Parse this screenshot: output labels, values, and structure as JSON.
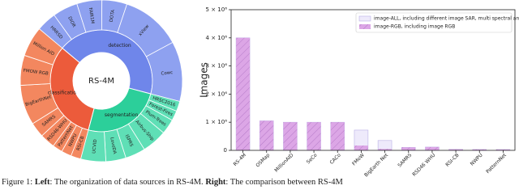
{
  "chart_data": [
    {
      "type": "sunburst",
      "center_label": "RS-4M",
      "groups": [
        {
          "name": "detection",
          "color": "#6f86ea",
          "child_color": "#8ea1f0",
          "value": 43,
          "children": [
            {
              "name": "HRRSD",
              "value": 4
            },
            {
              "name": "DIOR",
              "value": 5
            },
            {
              "name": "FAIR1M",
              "value": 5
            },
            {
              "name": "DOTA",
              "value": 5
            },
            {
              "name": "xView",
              "value": 12
            },
            {
              "name": "Cowc",
              "value": 12
            }
          ]
        },
        {
          "name": "segmentation",
          "color": "#2ccf9a",
          "child_color": "#5fdfb6",
          "value": 25,
          "children": [
            {
              "name": "HRSC2016",
              "value": 2
            },
            {
              "name": "Forest-Fires",
              "value": 2
            },
            {
              "name": "Plum-Trees",
              "value": 3
            },
            {
              "name": "Airbus-Ship",
              "value": 5
            },
            {
              "name": "ISPRS",
              "value": 4
            },
            {
              "name": "LoveDA",
              "value": 4
            },
            {
              "name": "UCVID",
              "value": 5
            }
          ]
        },
        {
          "name": "classification",
          "color": "#ec5b3b",
          "child_color": "#f3875f",
          "value": 32,
          "children": [
            {
              "name": "RSI-CB",
              "value": 2
            },
            {
              "name": "NWPU",
              "value": 2
            },
            {
              "name": "PatternNet",
              "value": 2
            },
            {
              "name": "RSD46-WHU",
              "value": 3
            },
            {
              "name": "SAMRS",
              "value": 3
            },
            {
              "name": "BigEarthNet",
              "value": 8
            },
            {
              "name": "FMOW RGB",
              "value": 6
            },
            {
              "name": "Million AID",
              "value": 6
            }
          ]
        }
      ]
    },
    {
      "type": "bar",
      "y_label": "Images",
      "categories": [
        "RS-4M",
        "OSMap",
        "MillionAID",
        "SeCo",
        "CACo",
        "FMoW",
        "BigEarth Net",
        "SAMRS",
        "RSD46 WHU",
        "RSI-CB",
        "NWPU",
        "PatternNet"
      ],
      "series": [
        {
          "name": "image-ALL, including different image SAR, multi spectral and RGB",
          "color": "#eeeafb",
          "values": [
            4000000,
            1050000,
            1000000,
            1000000,
            1000000,
            720000,
            350000,
            105000,
            117000,
            36000,
            31500,
            30000
          ]
        },
        {
          "name": "image-RGB, including image RGB",
          "color": "#dca6e6",
          "hatch": true,
          "values": [
            4000000,
            1050000,
            1000000,
            1000000,
            1000000,
            170000,
            50000,
            105000,
            117000,
            36000,
            31500,
            30000
          ]
        }
      ],
      "ylim": [
        0,
        5000000
      ],
      "yticks": [
        0,
        {
          "value": 1000000,
          "label": "1 × 10⁶"
        },
        {
          "value": 2000000,
          "label": "2 × 10⁶"
        },
        {
          "value": 3000000,
          "label": "3 × 10⁶"
        },
        {
          "value": 4000000,
          "label": "4 × 10⁶"
        },
        {
          "value": 5000000,
          "label": "5 × 10⁶"
        }
      ],
      "legend": "upper right"
    }
  ],
  "caption": [
    "Figure 1: ",
    "Left",
    ": The organization of data sources in RS-4M. ",
    "Right",
    ": The comparison between RS-4M"
  ]
}
